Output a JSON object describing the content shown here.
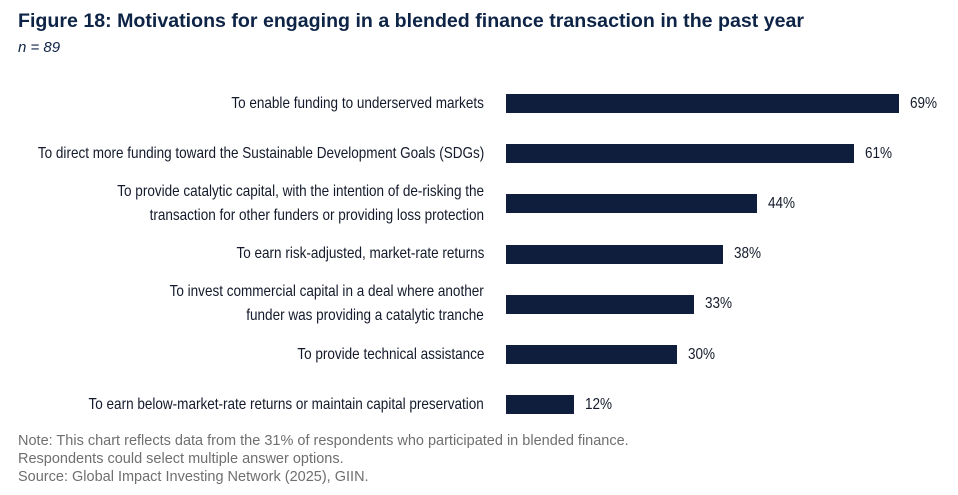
{
  "chart_data": {
    "type": "bar",
    "orientation": "horizontal",
    "title": "Figure 18: Motivations for engaging in a blended finance transaction in the past year",
    "subtitle": "n = 89",
    "categories": [
      "To enable funding to underserved markets",
      "To direct more funding toward the Sustainable Development Goals (SDGs)",
      "To provide catalytic capital, with the intention of de-risking the\ntransaction for other funders or providing loss protection",
      "To earn risk-adjusted, market-rate returns",
      "To invest commercial capital in a deal where another\nfunder was providing a catalytic tranche",
      "To provide technical assistance",
      "To earn below-market-rate returns or maintain capital preservation"
    ],
    "values": [
      69,
      61,
      44,
      38,
      33,
      30,
      12
    ],
    "data_labels": [
      "69%",
      "61%",
      "44%",
      "38%",
      "33%",
      "30%",
      "12%"
    ],
    "grid": false,
    "legend": "none"
  },
  "notes": [
    "Note: This chart reflects data from the 31% of respondents who participated in blended finance.",
    "Respondents could select multiple answer options.",
    "Source: Global Impact Investing Network (2025), GIIN."
  ],
  "colors": {
    "bar": "#0f1e3c",
    "title": "#0e2446",
    "text": "#141a2b",
    "note": "#6f6f6f"
  }
}
